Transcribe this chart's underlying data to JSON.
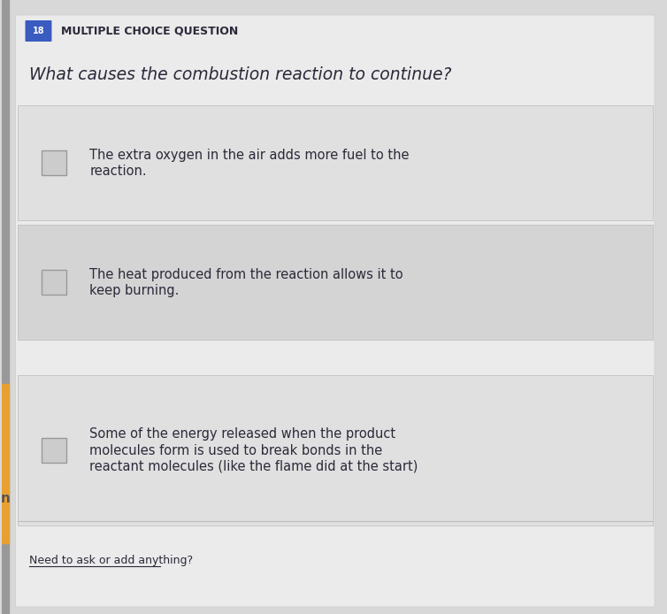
{
  "background_color": "#d8d8d8",
  "panel_color": "#e8e8e8",
  "header_label": "MULTIPLE CHOICE QUESTION",
  "header_icon_color": "#3a5bbf",
  "header_icon_text": "18",
  "question": "What causes the combustion reaction to continue?",
  "options": [
    "The extra oxygen in the air adds more fuel to the\nreaction.",
    "The heat produced from the reaction allows it to\nkeep burning.",
    "Some of the energy released when the product\nmolecules form is used to break bonds in the\nreactant molecules (like the flame did at the start)"
  ],
  "footer_text": "Need to ask or add anything?",
  "text_color": "#2a2a3a",
  "option_bg_color": "#d8d8d8",
  "divider_color": "#bbbbbb",
  "checkbox_color": "#cccccc",
  "checkbox_border": "#999999",
  "left_accent_color": "#e8a030",
  "left_bar_color": "#888888"
}
